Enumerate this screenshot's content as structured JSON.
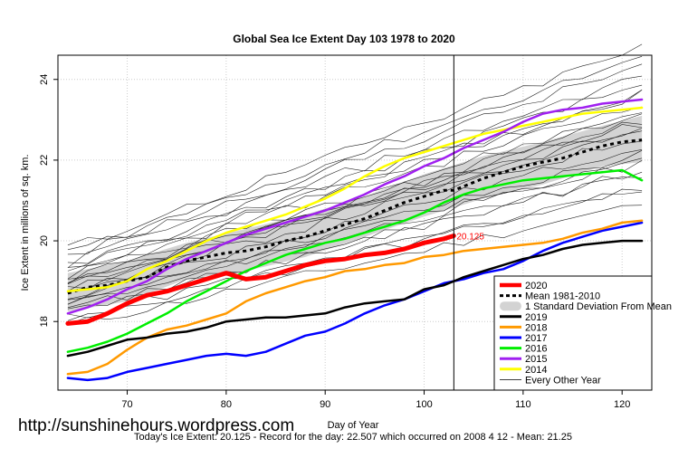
{
  "watermark": "http://sunshinehours.wordpress.com",
  "caption": "Today's Ice Extent: 20.125  - Record for the day: 22.507 which occurred on 2008 4 12  - Mean: 21.25",
  "chart_data": {
    "type": "line",
    "title": "Global Sea Ice Extent Day 103 1978 to 2020",
    "xlabel": "Day of Year",
    "ylabel": "Ice Extent in millions of sq. km.",
    "xlim": [
      63,
      123
    ],
    "ylim": [
      16.3,
      24.6
    ],
    "xticks": [
      70,
      80,
      90,
      100,
      110,
      120
    ],
    "yticks": [
      18,
      20,
      22,
      24
    ],
    "grid": true,
    "marker_day": 103,
    "annotation": {
      "x": 103,
      "y": 20.125,
      "text": "20.125"
    },
    "legend_position": "bottom-right",
    "legend": [
      {
        "label": "2020",
        "color": "#ff0000",
        "style": "thick"
      },
      {
        "label": "Mean 1981-2010",
        "color": "#000000",
        "style": "dashed"
      },
      {
        "label": "1 Standard Deviation From Mean",
        "color": "#d3d3d3",
        "style": "band"
      },
      {
        "label": "2019",
        "color": "#000000",
        "style": "line"
      },
      {
        "label": "2018",
        "color": "#ff9900",
        "style": "line"
      },
      {
        "label": "2017",
        "color": "#0000ff",
        "style": "line"
      },
      {
        "label": "2016",
        "color": "#00ee00",
        "style": "line"
      },
      {
        "label": "2015",
        "color": "#a020f0",
        "style": "line"
      },
      {
        "label": "2014",
        "color": "#ffff00",
        "style": "line"
      },
      {
        "label": "Every Other Year",
        "color": "#000000",
        "style": "thin"
      }
    ],
    "mean": {
      "x": [
        64,
        66,
        68,
        70,
        72,
        74,
        76,
        78,
        80,
        82,
        84,
        86,
        88,
        90,
        92,
        94,
        96,
        98,
        100,
        102,
        103,
        104,
        106,
        108,
        110,
        112,
        114,
        116,
        118,
        120,
        122
      ],
      "y": [
        18.7,
        18.85,
        18.9,
        19.0,
        19.1,
        19.35,
        19.5,
        19.6,
        19.7,
        19.75,
        19.85,
        20.0,
        20.1,
        20.25,
        20.4,
        20.55,
        20.75,
        20.95,
        21.1,
        21.25,
        21.25,
        21.35,
        21.55,
        21.7,
        21.85,
        21.95,
        22.05,
        22.2,
        22.35,
        22.45,
        22.5
      ]
    },
    "band": {
      "x": [
        64,
        70,
        76,
        82,
        88,
        94,
        100,
        106,
        112,
        118,
        122
      ],
      "upper": [
        19.2,
        19.5,
        19.95,
        20.3,
        20.65,
        21.1,
        21.65,
        22.1,
        22.45,
        22.85,
        23.1
      ],
      "lower": [
        18.25,
        18.5,
        19.05,
        19.25,
        19.6,
        20.1,
        20.6,
        21.05,
        21.4,
        21.85,
        21.95
      ]
    },
    "series": [
      {
        "name": "2020",
        "color": "#ff0000",
        "width": 5,
        "x": [
          64,
          66,
          68,
          70,
          72,
          74,
          76,
          78,
          80,
          82,
          84,
          86,
          88,
          90,
          92,
          94,
          96,
          98,
          100,
          102,
          103
        ],
        "y": [
          17.95,
          18.0,
          18.2,
          18.45,
          18.65,
          18.75,
          18.9,
          19.05,
          19.2,
          19.05,
          19.1,
          19.25,
          19.4,
          19.5,
          19.55,
          19.65,
          19.7,
          19.8,
          19.95,
          20.05,
          20.125
        ]
      },
      {
        "name": "2019",
        "color": "#000000",
        "width": 2.5,
        "x": [
          64,
          66,
          68,
          70,
          72,
          74,
          76,
          78,
          80,
          82,
          84,
          86,
          88,
          90,
          92,
          94,
          96,
          98,
          100,
          102,
          104,
          106,
          108,
          110,
          112,
          114,
          116,
          118,
          120,
          122
        ],
        "y": [
          17.15,
          17.25,
          17.4,
          17.55,
          17.6,
          17.7,
          17.75,
          17.85,
          18.0,
          18.05,
          18.1,
          18.1,
          18.15,
          18.2,
          18.35,
          18.45,
          18.5,
          18.55,
          18.8,
          18.9,
          19.1,
          19.25,
          19.4,
          19.55,
          19.65,
          19.8,
          19.9,
          19.95,
          20.0,
          20.0
        ]
      },
      {
        "name": "2018",
        "color": "#ff9900",
        "width": 2.5,
        "x": [
          64,
          66,
          68,
          70,
          72,
          74,
          76,
          78,
          80,
          82,
          84,
          86,
          88,
          90,
          92,
          94,
          96,
          98,
          100,
          102,
          104,
          106,
          108,
          110,
          112,
          114,
          116,
          118,
          120,
          122
        ],
        "y": [
          16.7,
          16.75,
          16.95,
          17.3,
          17.6,
          17.8,
          17.9,
          18.05,
          18.2,
          18.5,
          18.7,
          18.85,
          19.0,
          19.1,
          19.25,
          19.3,
          19.4,
          19.45,
          19.6,
          19.65,
          19.75,
          19.8,
          19.85,
          19.9,
          19.95,
          20.05,
          20.2,
          20.3,
          20.45,
          20.5
        ]
      },
      {
        "name": "2017",
        "color": "#0000ff",
        "width": 2.5,
        "x": [
          64,
          66,
          68,
          70,
          72,
          74,
          76,
          78,
          80,
          82,
          84,
          86,
          88,
          90,
          92,
          94,
          96,
          98,
          100,
          102,
          104,
          106,
          108,
          110,
          112,
          114,
          116,
          118,
          120,
          122
        ],
        "y": [
          16.6,
          16.55,
          16.6,
          16.75,
          16.85,
          16.95,
          17.05,
          17.15,
          17.2,
          17.15,
          17.25,
          17.45,
          17.65,
          17.75,
          17.95,
          18.2,
          18.4,
          18.55,
          18.75,
          18.95,
          19.05,
          19.2,
          19.3,
          19.5,
          19.75,
          19.95,
          20.1,
          20.25,
          20.35,
          20.45
        ]
      },
      {
        "name": "2016",
        "color": "#00ee00",
        "width": 2.5,
        "x": [
          64,
          66,
          68,
          70,
          72,
          74,
          76,
          78,
          80,
          82,
          84,
          86,
          88,
          90,
          92,
          94,
          96,
          98,
          100,
          102,
          104,
          106,
          108,
          110,
          112,
          114,
          116,
          118,
          120,
          122
        ],
        "y": [
          17.25,
          17.35,
          17.5,
          17.7,
          17.95,
          18.2,
          18.5,
          18.75,
          19.0,
          19.25,
          19.45,
          19.65,
          19.8,
          19.95,
          20.05,
          20.2,
          20.35,
          20.5,
          20.7,
          20.95,
          21.15,
          21.3,
          21.4,
          21.5,
          21.55,
          21.6,
          21.65,
          21.7,
          21.75,
          21.5
        ]
      },
      {
        "name": "2015",
        "color": "#a020f0",
        "width": 2.5,
        "x": [
          64,
          66,
          68,
          70,
          72,
          74,
          76,
          78,
          80,
          82,
          84,
          86,
          88,
          90,
          92,
          94,
          96,
          98,
          100,
          102,
          104,
          106,
          108,
          110,
          112,
          114,
          116,
          118,
          120,
          122
        ],
        "y": [
          18.2,
          18.35,
          18.55,
          18.8,
          19.0,
          19.3,
          19.55,
          19.75,
          19.95,
          20.15,
          20.3,
          20.45,
          20.6,
          20.75,
          20.95,
          21.15,
          21.4,
          21.6,
          21.85,
          22.05,
          22.3,
          22.5,
          22.7,
          22.95,
          23.15,
          23.25,
          23.3,
          23.4,
          23.45,
          23.5
        ]
      },
      {
        "name": "2014",
        "color": "#ffff00",
        "width": 2.5,
        "x": [
          64,
          66,
          68,
          70,
          72,
          74,
          76,
          78,
          80,
          82,
          84,
          86,
          88,
          90,
          92,
          94,
          96,
          98,
          100,
          102,
          104,
          106,
          108,
          110,
          112,
          114,
          116,
          118,
          120,
          122
        ],
        "y": [
          18.75,
          18.8,
          18.85,
          19.0,
          19.3,
          19.5,
          19.75,
          20.0,
          20.2,
          20.35,
          20.5,
          20.65,
          20.85,
          21.05,
          21.3,
          21.6,
          21.85,
          22.05,
          22.2,
          22.35,
          22.5,
          22.65,
          22.75,
          22.85,
          22.95,
          23.05,
          23.15,
          23.2,
          23.25,
          23.3
        ]
      }
    ]
  }
}
